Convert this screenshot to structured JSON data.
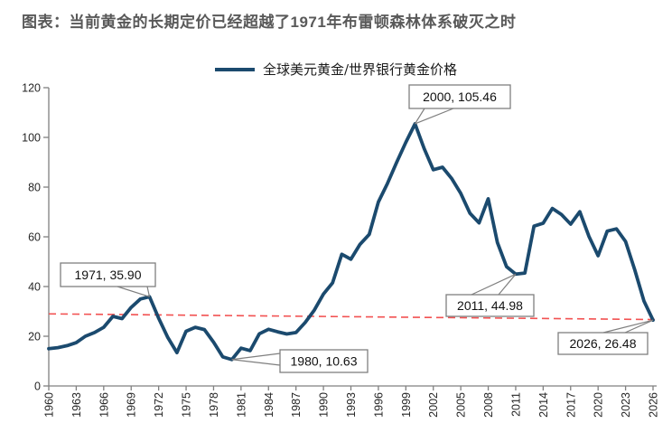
{
  "header": {
    "title": "图表：当前黄金的长期定价已经超越了1971年布雷顿森林体系破灭之时"
  },
  "legend": {
    "label": "全球美元黄金/世界银行黄金价格"
  },
  "colors": {
    "series": "#1b4a6e",
    "reference_line": "#f25252",
    "axis": "#808080",
    "title": "#595959",
    "tick_label": "#262626",
    "callout_border": "#7f7f7f",
    "callout_text": "#111111",
    "background": "#ffffff"
  },
  "chart_data": {
    "type": "line",
    "title": "图表：当前黄金的长期定价已经超越了1971年布雷顿森林体系破灭之时",
    "xlabel": "",
    "ylabel": "",
    "ylim": [
      0,
      120
    ],
    "ytick_step": 20,
    "yticks": [
      0,
      20,
      40,
      60,
      80,
      100,
      120
    ],
    "xlim": [
      1960,
      2026
    ],
    "xtick_years": [
      1960,
      1963,
      1966,
      1969,
      1972,
      1975,
      1978,
      1981,
      1984,
      1987,
      1990,
      1993,
      1996,
      1999,
      2002,
      2005,
      2008,
      2011,
      2014,
      2017,
      2020,
      2023,
      2026
    ],
    "xtick_label_rotation": -90,
    "grid": false,
    "legend_position": "top-center",
    "series": [
      {
        "name": "全球美元黄金/世界银行黄金价格",
        "x": [
          1960,
          1961,
          1962,
          1963,
          1964,
          1965,
          1966,
          1967,
          1968,
          1969,
          1970,
          1971,
          1972,
          1973,
          1974,
          1975,
          1976,
          1977,
          1978,
          1979,
          1980,
          1981,
          1982,
          1983,
          1984,
          1985,
          1986,
          1987,
          1988,
          1989,
          1990,
          1991,
          1992,
          1993,
          1994,
          1995,
          1996,
          1997,
          1998,
          1999,
          2000,
          2001,
          2002,
          2003,
          2004,
          2005,
          2006,
          2007,
          2008,
          2009,
          2010,
          2011,
          2012,
          2013,
          2014,
          2015,
          2016,
          2017,
          2018,
          2019,
          2020,
          2021,
          2022,
          2023,
          2024,
          2025,
          2026
        ],
        "values": [
          15.0,
          15.4,
          16.2,
          17.4,
          20.0,
          21.5,
          23.6,
          28.0,
          27.1,
          31.6,
          35.0,
          35.9,
          27.3,
          19.5,
          13.4,
          22.0,
          23.6,
          22.7,
          17.6,
          11.7,
          10.63,
          15.2,
          14.2,
          21.0,
          22.8,
          21.8,
          20.9,
          21.5,
          25.5,
          30.5,
          37.0,
          41.5,
          53.0,
          51.0,
          57.0,
          61.0,
          74.0,
          81.5,
          90.0,
          98.0,
          105.46,
          95.5,
          87.0,
          88.0,
          83.5,
          77.5,
          69.5,
          65.6,
          75.3,
          57.7,
          48.0,
          44.98,
          45.4,
          64.3,
          65.5,
          71.4,
          69.0,
          65.1,
          70.1,
          60.2,
          52.4,
          62.3,
          63.2,
          58.1,
          46.8,
          34.2,
          26.48
        ]
      }
    ],
    "reference_line": {
      "style": "dashed",
      "color": "#f25252",
      "start_value": 29.0,
      "end_value": 26.7,
      "description": "red dashed reference line spanning the plot width"
    },
    "annotations": [
      {
        "label": "1971, 35.90",
        "x": 1971,
        "y": 35.9
      },
      {
        "label": "2000, 105.46",
        "x": 2000,
        "y": 105.46
      },
      {
        "label": "1980, 10.63",
        "x": 1980,
        "y": 10.63
      },
      {
        "label": "2011, 44.98",
        "x": 2011,
        "y": 44.98
      },
      {
        "label": "2026, 26.48",
        "x": 2026,
        "y": 26.48
      }
    ]
  }
}
